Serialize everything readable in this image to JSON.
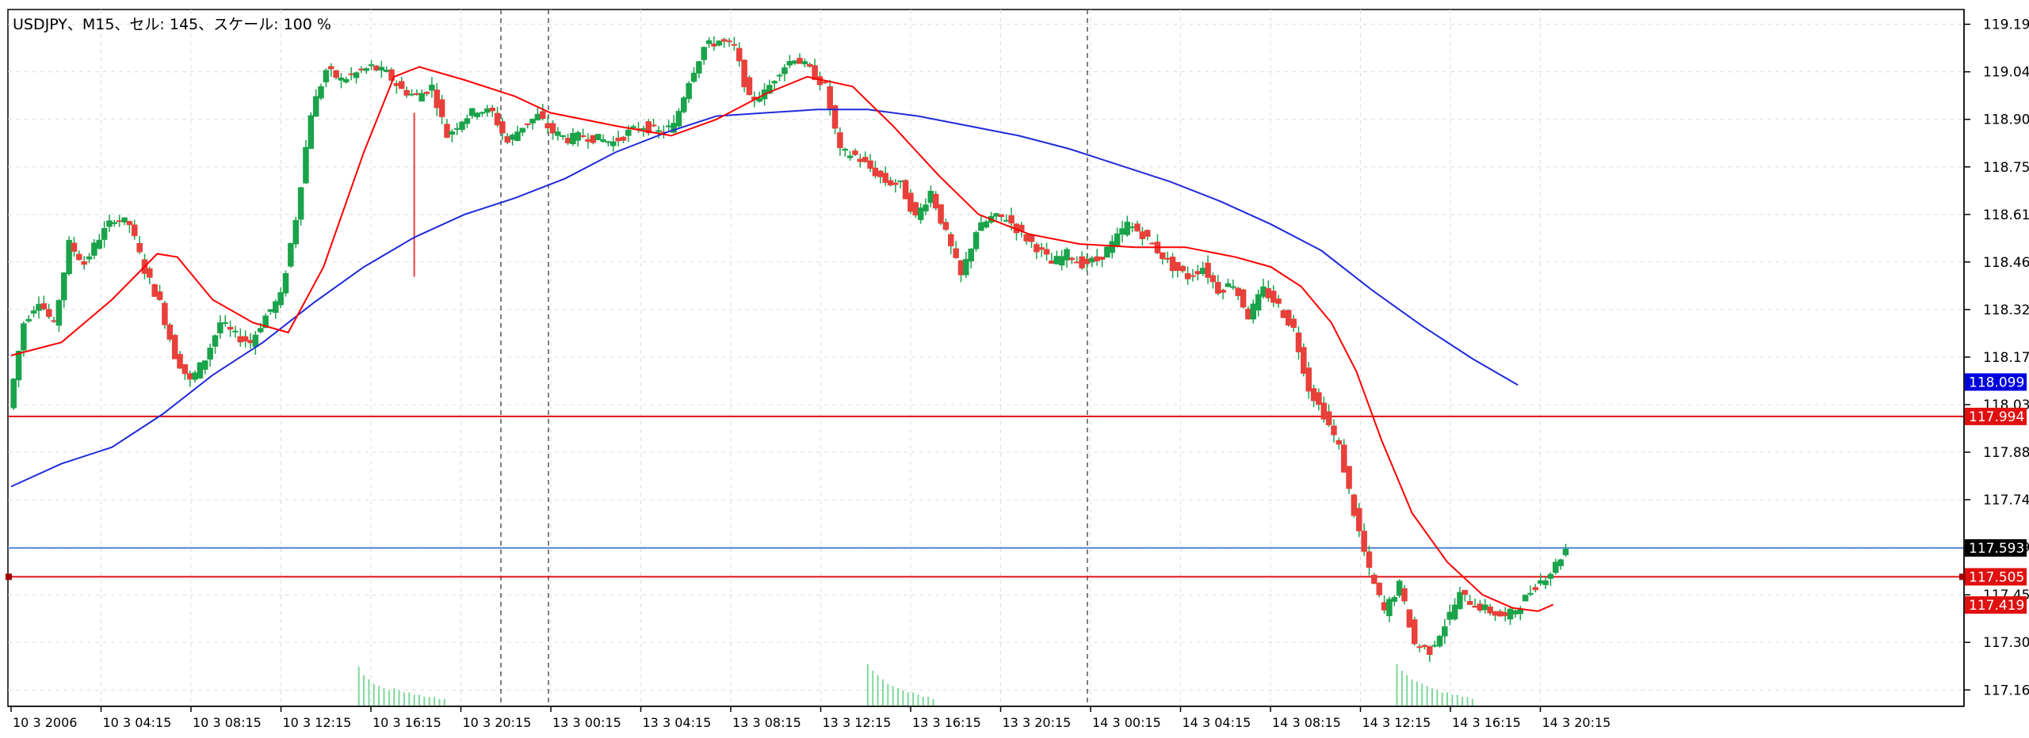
{
  "window": {
    "title": "USDJPY、M15、セル: 145、スケール: 100 %"
  },
  "chart_data": {
    "type": "candlestick",
    "symbol": "USDJPY",
    "timeframe": "M15",
    "grid": true,
    "colors": {
      "bull": "#1aa34a",
      "bear": "#e8403a",
      "wick": "#1aa34a",
      "ma_fast": "#ff0000",
      "ma_slow": "#1f2bd9",
      "hline_red": "#e01010",
      "hline_blue": "#5b8fd6",
      "grid": "#dcdcdc",
      "axis": "#000000",
      "volume": "#7fd89a"
    },
    "y_axis": {
      "ticks": [
        "119.190",
        "119.045",
        "118.900",
        "118.755",
        "118.610",
        "118.465",
        "118.320",
        "118.175",
        "118.030",
        "117.885",
        "117.740",
        "117.595",
        "117.450",
        "117.305",
        "117.160"
      ],
      "ylim": [
        117.11,
        119.235
      ]
    },
    "x_axis": {
      "tick_labels": [
        "10 3 2006",
        "10 3 04:15",
        "10 3 08:15",
        "10 3 12:15",
        "10 3 16:15",
        "10 3 20:15",
        "13 3 00:15",
        "13 3 04:15",
        "13 3 08:15",
        "13 3 12:15",
        "13 3 16:15",
        "13 3 20:15",
        "14 3 00:15",
        "14 3 04:15",
        "14 3 08:15",
        "14 3 12:15",
        "14 3 16:15",
        "14 3 20:15"
      ]
    },
    "price_labels": [
      {
        "value": "118.099",
        "color": "#0000dd"
      },
      {
        "value": "117.994",
        "color": "#e01010"
      },
      {
        "value": "117.593",
        "color": "#000000"
      },
      {
        "value": "117.505",
        "color": "#e01010"
      },
      {
        "value": "117.419",
        "color": "#e01010"
      }
    ],
    "horizontal_lines": [
      {
        "value": 117.994,
        "color": "#e01010"
      },
      {
        "value": 117.593,
        "color": "#5b8fd6"
      },
      {
        "value": 117.505,
        "color": "#e01010"
      }
    ],
    "price_path": [
      {
        "x": 0,
        "y": 118.02
      },
      {
        "x": 6,
        "y": 118.28
      },
      {
        "x": 12,
        "y": 118.35
      },
      {
        "x": 18,
        "y": 118.27
      },
      {
        "x": 24,
        "y": 118.52
      },
      {
        "x": 30,
        "y": 118.46
      },
      {
        "x": 36,
        "y": 118.54
      },
      {
        "x": 42,
        "y": 118.6
      },
      {
        "x": 48,
        "y": 118.58
      },
      {
        "x": 54,
        "y": 118.44
      },
      {
        "x": 60,
        "y": 118.34
      },
      {
        "x": 66,
        "y": 118.18
      },
      {
        "x": 72,
        "y": 118.1
      },
      {
        "x": 78,
        "y": 118.17
      },
      {
        "x": 84,
        "y": 118.28
      },
      {
        "x": 90,
        "y": 118.24
      },
      {
        "x": 96,
        "y": 118.22
      },
      {
        "x": 102,
        "y": 118.3
      },
      {
        "x": 108,
        "y": 118.36
      },
      {
        "x": 114,
        "y": 118.6
      },
      {
        "x": 120,
        "y": 118.92
      },
      {
        "x": 126,
        "y": 119.05
      },
      {
        "x": 132,
        "y": 119.02
      },
      {
        "x": 138,
        "y": 119.04
      },
      {
        "x": 144,
        "y": 119.06
      },
      {
        "x": 150,
        "y": 119.04
      },
      {
        "x": 156,
        "y": 118.99
      },
      {
        "x": 162,
        "y": 118.97
      },
      {
        "x": 168,
        "y": 119.0
      },
      {
        "x": 174,
        "y": 118.85
      },
      {
        "x": 180,
        "y": 118.9
      },
      {
        "x": 186,
        "y": 118.93
      },
      {
        "x": 192,
        "y": 118.92
      },
      {
        "x": 198,
        "y": 118.83
      },
      {
        "x": 204,
        "y": 118.88
      },
      {
        "x": 210,
        "y": 118.91
      },
      {
        "x": 216,
        "y": 118.86
      },
      {
        "x": 222,
        "y": 118.84
      },
      {
        "x": 228,
        "y": 118.85
      },
      {
        "x": 234,
        "y": 118.84
      },
      {
        "x": 240,
        "y": 118.83
      },
      {
        "x": 246,
        "y": 118.86
      },
      {
        "x": 252,
        "y": 118.88
      },
      {
        "x": 258,
        "y": 118.86
      },
      {
        "x": 264,
        "y": 118.88
      },
      {
        "x": 270,
        "y": 119.02
      },
      {
        "x": 276,
        "y": 119.12
      },
      {
        "x": 282,
        "y": 119.14
      },
      {
        "x": 288,
        "y": 119.12
      },
      {
        "x": 294,
        "y": 118.96
      },
      {
        "x": 300,
        "y": 118.98
      },
      {
        "x": 306,
        "y": 119.05
      },
      {
        "x": 312,
        "y": 119.09
      },
      {
        "x": 318,
        "y": 119.05
      },
      {
        "x": 324,
        "y": 119.0
      },
      {
        "x": 330,
        "y": 118.8
      },
      {
        "x": 336,
        "y": 118.79
      },
      {
        "x": 342,
        "y": 118.75
      },
      {
        "x": 348,
        "y": 118.71
      },
      {
        "x": 354,
        "y": 118.7
      },
      {
        "x": 360,
        "y": 118.6
      },
      {
        "x": 366,
        "y": 118.68
      },
      {
        "x": 372,
        "y": 118.55
      },
      {
        "x": 378,
        "y": 118.42
      },
      {
        "x": 384,
        "y": 118.56
      },
      {
        "x": 390,
        "y": 118.6
      },
      {
        "x": 396,
        "y": 118.6
      },
      {
        "x": 402,
        "y": 118.55
      },
      {
        "x": 408,
        "y": 118.51
      },
      {
        "x": 414,
        "y": 118.46
      },
      {
        "x": 420,
        "y": 118.49
      },
      {
        "x": 426,
        "y": 118.46
      },
      {
        "x": 432,
        "y": 118.47
      },
      {
        "x": 438,
        "y": 118.52
      },
      {
        "x": 444,
        "y": 118.58
      },
      {
        "x": 450,
        "y": 118.55
      },
      {
        "x": 456,
        "y": 118.5
      },
      {
        "x": 462,
        "y": 118.45
      },
      {
        "x": 468,
        "y": 118.42
      },
      {
        "x": 474,
        "y": 118.45
      },
      {
        "x": 480,
        "y": 118.38
      },
      {
        "x": 486,
        "y": 118.4
      },
      {
        "x": 492,
        "y": 118.3
      },
      {
        "x": 498,
        "y": 118.38
      },
      {
        "x": 504,
        "y": 118.33
      },
      {
        "x": 510,
        "y": 118.26
      },
      {
        "x": 516,
        "y": 118.08
      },
      {
        "x": 522,
        "y": 118.0
      },
      {
        "x": 528,
        "y": 117.9
      },
      {
        "x": 534,
        "y": 117.7
      },
      {
        "x": 540,
        "y": 117.52
      },
      {
        "x": 546,
        "y": 117.4
      },
      {
        "x": 552,
        "y": 117.48
      },
      {
        "x": 558,
        "y": 117.3
      },
      {
        "x": 564,
        "y": 117.28
      },
      {
        "x": 570,
        "y": 117.36
      },
      {
        "x": 576,
        "y": 117.45
      },
      {
        "x": 582,
        "y": 117.42
      },
      {
        "x": 588,
        "y": 117.4
      },
      {
        "x": 594,
        "y": 117.38
      },
      {
        "x": 600,
        "y": 117.42
      },
      {
        "x": 606,
        "y": 117.48
      },
      {
        "x": 612,
        "y": 117.52
      },
      {
        "x": 618,
        "y": 117.59
      }
    ],
    "ma_fast": [
      {
        "x": 0,
        "y": 118.18
      },
      {
        "x": 20,
        "y": 118.22
      },
      {
        "x": 40,
        "y": 118.35
      },
      {
        "x": 58,
        "y": 118.49
      },
      {
        "x": 66,
        "y": 118.48
      },
      {
        "x": 80,
        "y": 118.35
      },
      {
        "x": 96,
        "y": 118.28
      },
      {
        "x": 110,
        "y": 118.25
      },
      {
        "x": 124,
        "y": 118.45
      },
      {
        "x": 140,
        "y": 118.8
      },
      {
        "x": 152,
        "y": 119.03
      },
      {
        "x": 162,
        "y": 119.06
      },
      {
        "x": 180,
        "y": 119.02
      },
      {
        "x": 200,
        "y": 118.97
      },
      {
        "x": 214,
        "y": 118.92
      },
      {
        "x": 240,
        "y": 118.88
      },
      {
        "x": 262,
        "y": 118.85
      },
      {
        "x": 280,
        "y": 118.9
      },
      {
        "x": 300,
        "y": 118.98
      },
      {
        "x": 316,
        "y": 119.03
      },
      {
        "x": 334,
        "y": 119.0
      },
      {
        "x": 350,
        "y": 118.88
      },
      {
        "x": 368,
        "y": 118.73
      },
      {
        "x": 384,
        "y": 118.61
      },
      {
        "x": 404,
        "y": 118.55
      },
      {
        "x": 424,
        "y": 118.52
      },
      {
        "x": 446,
        "y": 118.51
      },
      {
        "x": 466,
        "y": 118.51
      },
      {
        "x": 486,
        "y": 118.48
      },
      {
        "x": 500,
        "y": 118.45
      },
      {
        "x": 512,
        "y": 118.39
      },
      {
        "x": 524,
        "y": 118.28
      },
      {
        "x": 534,
        "y": 118.13
      },
      {
        "x": 544,
        "y": 117.92
      },
      {
        "x": 556,
        "y": 117.7
      },
      {
        "x": 570,
        "y": 117.55
      },
      {
        "x": 584,
        "y": 117.45
      },
      {
        "x": 596,
        "y": 117.41
      },
      {
        "x": 606,
        "y": 117.4
      },
      {
        "x": 612,
        "y": 117.42
      }
    ],
    "ma_slow": [
      {
        "x": 0,
        "y": 117.78
      },
      {
        "x": 20,
        "y": 117.85
      },
      {
        "x": 40,
        "y": 117.9
      },
      {
        "x": 60,
        "y": 118.0
      },
      {
        "x": 80,
        "y": 118.12
      },
      {
        "x": 100,
        "y": 118.22
      },
      {
        "x": 120,
        "y": 118.34
      },
      {
        "x": 140,
        "y": 118.45
      },
      {
        "x": 160,
        "y": 118.54
      },
      {
        "x": 180,
        "y": 118.61
      },
      {
        "x": 200,
        "y": 118.66
      },
      {
        "x": 220,
        "y": 118.72
      },
      {
        "x": 240,
        "y": 118.8
      },
      {
        "x": 260,
        "y": 118.86
      },
      {
        "x": 280,
        "y": 118.91
      },
      {
        "x": 300,
        "y": 118.92
      },
      {
        "x": 320,
        "y": 118.93
      },
      {
        "x": 340,
        "y": 118.93
      },
      {
        "x": 360,
        "y": 118.91
      },
      {
        "x": 380,
        "y": 118.88
      },
      {
        "x": 400,
        "y": 118.85
      },
      {
        "x": 420,
        "y": 118.81
      },
      {
        "x": 440,
        "y": 118.76
      },
      {
        "x": 460,
        "y": 118.71
      },
      {
        "x": 480,
        "y": 118.65
      },
      {
        "x": 500,
        "y": 118.58
      },
      {
        "x": 520,
        "y": 118.5
      },
      {
        "x": 540,
        "y": 118.38
      },
      {
        "x": 560,
        "y": 118.27
      },
      {
        "x": 580,
        "y": 118.17
      },
      {
        "x": 598,
        "y": 118.09
      }
    ],
    "volume": [
      {
        "x": 138,
        "y": 0.9
      },
      {
        "x": 140,
        "y": 0.7
      },
      {
        "x": 142,
        "y": 0.6
      },
      {
        "x": 144,
        "y": 0.5
      },
      {
        "x": 146,
        "y": 0.45
      },
      {
        "x": 148,
        "y": 0.4
      },
      {
        "x": 150,
        "y": 0.35
      },
      {
        "x": 152,
        "y": 0.4
      },
      {
        "x": 154,
        "y": 0.35
      },
      {
        "x": 156,
        "y": 0.3
      },
      {
        "x": 158,
        "y": 0.3
      },
      {
        "x": 160,
        "y": 0.25
      },
      {
        "x": 162,
        "y": 0.25
      },
      {
        "x": 164,
        "y": 0.2
      },
      {
        "x": 166,
        "y": 0.2
      },
      {
        "x": 168,
        "y": 0.2
      },
      {
        "x": 170,
        "y": 0.15
      },
      {
        "x": 172,
        "y": 0.15
      },
      {
        "x": 340,
        "y": 0.95
      },
      {
        "x": 342,
        "y": 0.8
      },
      {
        "x": 344,
        "y": 0.7
      },
      {
        "x": 346,
        "y": 0.6
      },
      {
        "x": 348,
        "y": 0.5
      },
      {
        "x": 350,
        "y": 0.45
      },
      {
        "x": 352,
        "y": 0.4
      },
      {
        "x": 354,
        "y": 0.35
      },
      {
        "x": 356,
        "y": 0.3
      },
      {
        "x": 358,
        "y": 0.3
      },
      {
        "x": 360,
        "y": 0.25
      },
      {
        "x": 362,
        "y": 0.2
      },
      {
        "x": 364,
        "y": 0.2
      },
      {
        "x": 366,
        "y": 0.15
      },
      {
        "x": 550,
        "y": 0.95
      },
      {
        "x": 552,
        "y": 0.8
      },
      {
        "x": 554,
        "y": 0.7
      },
      {
        "x": 556,
        "y": 0.6
      },
      {
        "x": 558,
        "y": 0.55
      },
      {
        "x": 560,
        "y": 0.5
      },
      {
        "x": 562,
        "y": 0.45
      },
      {
        "x": 564,
        "y": 0.4
      },
      {
        "x": 566,
        "y": 0.35
      },
      {
        "x": 568,
        "y": 0.3
      },
      {
        "x": 570,
        "y": 0.3
      },
      {
        "x": 572,
        "y": 0.25
      },
      {
        "x": 574,
        "y": 0.25
      },
      {
        "x": 576,
        "y": 0.2
      },
      {
        "x": 578,
        "y": 0.2
      },
      {
        "x": 580,
        "y": 0.15
      }
    ]
  }
}
